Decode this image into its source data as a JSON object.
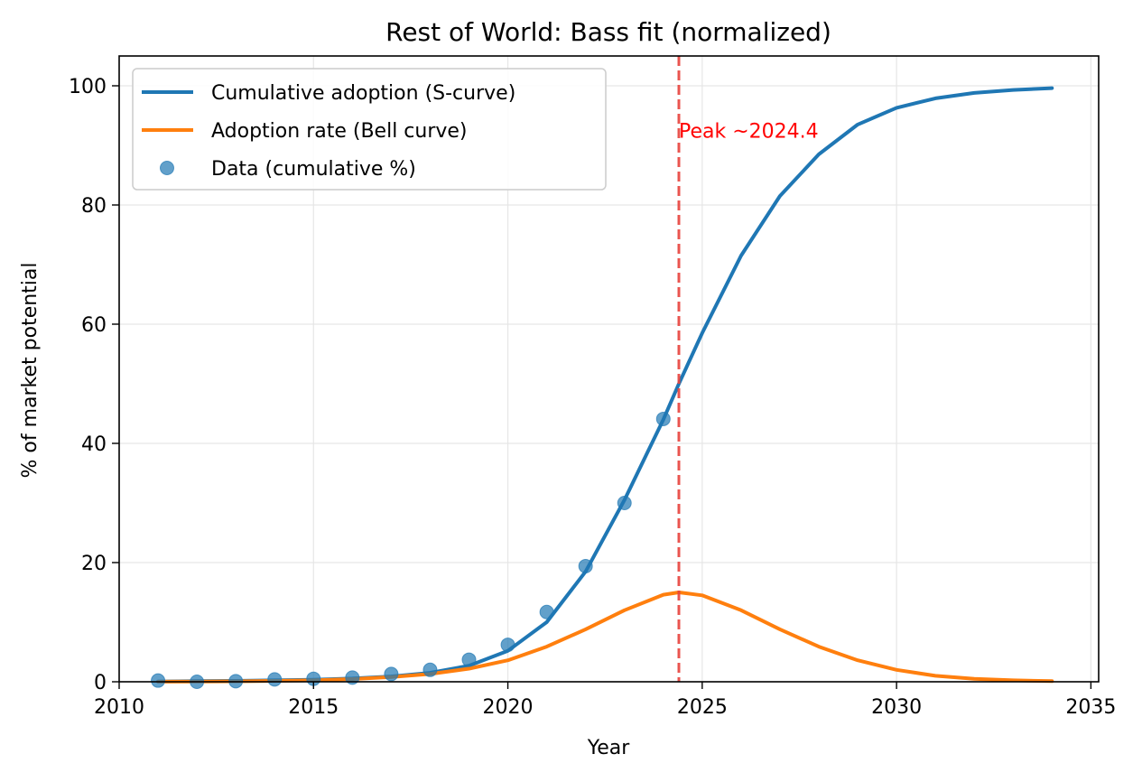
{
  "chart_data": {
    "type": "line",
    "title": "Rest of World: Bass fit (normalized)",
    "xlabel": "Year",
    "ylabel": "% of market potential",
    "xlim": [
      2010.0,
      2035.2
    ],
    "ylim": [
      0,
      105
    ],
    "xticks": [
      2010,
      2015,
      2020,
      2025,
      2030,
      2035
    ],
    "yticks": [
      0,
      20,
      40,
      60,
      80,
      100
    ],
    "grid": true,
    "legend_position": "upper-left",
    "series": [
      {
        "name": "Cumulative adoption (S-curve)",
        "kind": "line",
        "color": "#1f77b4",
        "x": [
          2011,
          2012,
          2013,
          2014,
          2015,
          2016,
          2017,
          2018,
          2019,
          2020,
          2021,
          2022,
          2023,
          2024,
          2024.4,
          2025,
          2026,
          2027,
          2028,
          2029,
          2030,
          2031,
          2032,
          2033,
          2034
        ],
        "y": [
          0.05,
          0.1,
          0.15,
          0.25,
          0.35,
          0.55,
          0.9,
          1.5,
          2.7,
          5.2,
          10.0,
          18.5,
          30.5,
          44.0,
          50.0,
          58.5,
          71.5,
          81.5,
          88.5,
          93.5,
          96.3,
          97.9,
          98.8,
          99.3,
          99.6
        ]
      },
      {
        "name": "Adoption rate (Bell curve)",
        "kind": "line",
        "color": "#ff7f0e",
        "x": [
          2011,
          2012,
          2013,
          2014,
          2015,
          2016,
          2017,
          2018,
          2019,
          2020,
          2021,
          2022,
          2023,
          2024,
          2024.4,
          2025,
          2026,
          2027,
          2028,
          2029,
          2030,
          2031,
          2032,
          2033,
          2034
        ],
        "y": [
          0.02,
          0.04,
          0.08,
          0.15,
          0.25,
          0.45,
          0.8,
          1.3,
          2.2,
          3.6,
          5.9,
          8.8,
          12.0,
          14.6,
          15.0,
          14.5,
          12.0,
          8.8,
          5.9,
          3.6,
          2.0,
          1.0,
          0.5,
          0.25,
          0.1
        ]
      },
      {
        "name": "Data (cumulative %)",
        "kind": "scatter",
        "color": "#1f77b4",
        "x": [
          2011,
          2012,
          2013,
          2014,
          2015,
          2016,
          2017,
          2018,
          2019,
          2020,
          2021,
          2022,
          2023,
          2024
        ],
        "y": [
          0.2,
          0.0,
          0.1,
          0.4,
          0.5,
          0.7,
          1.3,
          2.0,
          3.7,
          6.2,
          11.7,
          19.4,
          30.0,
          44.1
        ]
      }
    ],
    "annotations": [
      {
        "type": "vline",
        "x": 2024.4,
        "color": "#e8413c",
        "style": "dashed"
      },
      {
        "type": "text",
        "x": 2024.4,
        "y": 92.5,
        "text": "Peak ~2024.4",
        "color": "#ff0000"
      }
    ]
  }
}
